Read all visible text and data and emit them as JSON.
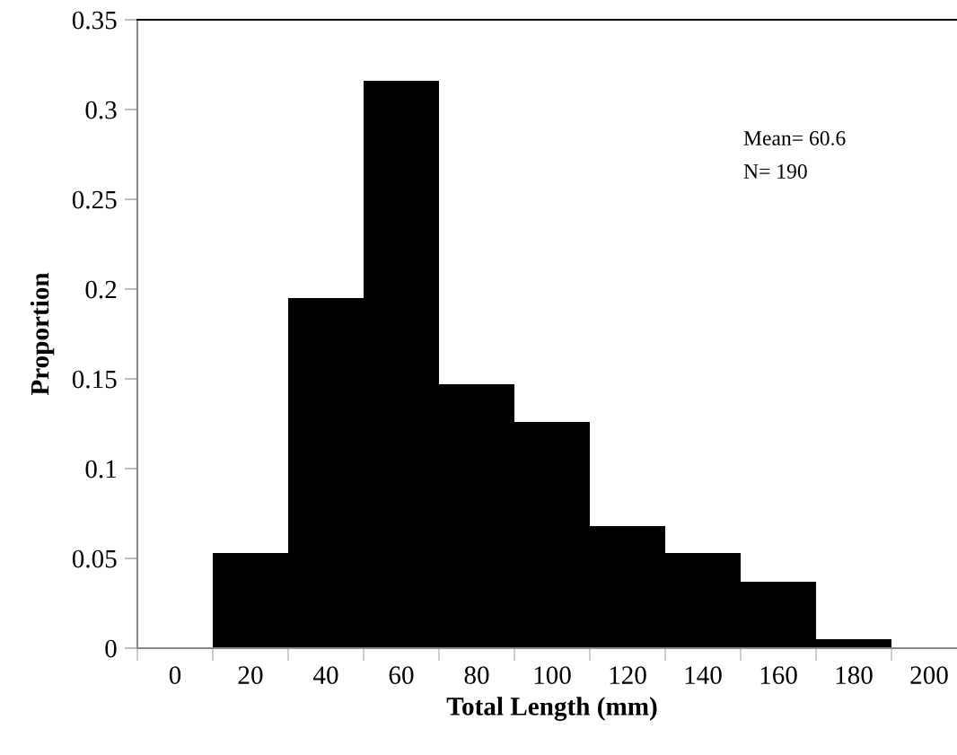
{
  "chart_data": {
    "type": "bar",
    "xlabel": "Total Length (mm)",
    "ylabel": "Proportion",
    "categories": [
      "0",
      "20",
      "40",
      "60",
      "80",
      "100",
      "120",
      "140",
      "160",
      "180",
      "200"
    ],
    "values": [
      0,
      0.053,
      0.195,
      0.316,
      0.147,
      0.126,
      0.068,
      0.053,
      0.037,
      0.005,
      0
    ],
    "color": "#000000",
    "ylim": [
      0,
      0.35
    ],
    "yticks": [
      0,
      0.05,
      0.1,
      0.15,
      0.2,
      0.25,
      0.3,
      0.35
    ],
    "grid": false,
    "legend": false,
    "annotations": [
      "Mean= 60.6",
      "N= 190"
    ]
  }
}
